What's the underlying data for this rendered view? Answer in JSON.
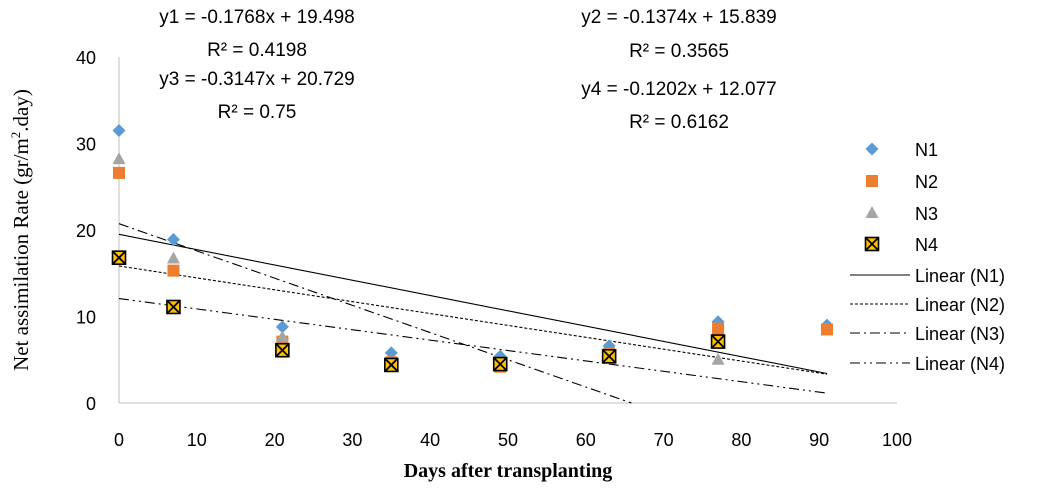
{
  "chart_data": {
    "type": "scatter",
    "title": "",
    "xlabel": "Days after transplanting",
    "ylabel_main": "Net assimilation Rate (gr/m",
    "ylabel_sup": "2",
    "ylabel_tail": ".day)",
    "xlim": [
      0,
      100
    ],
    "ylim": [
      0,
      40
    ],
    "x_ticks": [
      0,
      10,
      20,
      30,
      40,
      50,
      60,
      70,
      80,
      90,
      100
    ],
    "y_ticks": [
      0,
      10,
      20,
      30,
      40
    ],
    "grid": false,
    "legend_position": "right",
    "series": [
      {
        "name": "N1",
        "marker": "diamond",
        "color": "#5B9BD5",
        "points": [
          [
            0,
            31.5
          ],
          [
            7,
            18.9
          ],
          [
            21,
            8.8
          ],
          [
            35,
            5.8
          ],
          [
            49,
            5.4
          ],
          [
            63,
            6.6
          ],
          [
            77,
            9.4
          ],
          [
            91,
            9.0
          ]
        ]
      },
      {
        "name": "N2",
        "marker": "square",
        "color": "#ED7D31",
        "points": [
          [
            0,
            26.6
          ],
          [
            7,
            15.3
          ],
          [
            21,
            7.1
          ],
          [
            35,
            4.7
          ],
          [
            49,
            4.2
          ],
          [
            63,
            5.7
          ],
          [
            77,
            8.6
          ],
          [
            91,
            8.5
          ]
        ]
      },
      {
        "name": "N3",
        "marker": "triangle",
        "color": "#A5A5A5",
        "points": [
          [
            0,
            28.2
          ],
          [
            7,
            16.7
          ],
          [
            21,
            7.6
          ],
          [
            35,
            4.5
          ],
          [
            49,
            4.5
          ],
          [
            63,
            5.1
          ],
          [
            77,
            5.0
          ]
        ]
      },
      {
        "name": "N4",
        "marker": "boxed-x",
        "color": "#FFC000",
        "points": [
          [
            0,
            16.8
          ],
          [
            7,
            11.1
          ],
          [
            21,
            6.1
          ],
          [
            35,
            4.4
          ],
          [
            49,
            4.5
          ],
          [
            63,
            5.4
          ],
          [
            77,
            7.1
          ]
        ]
      }
    ],
    "trendlines": [
      {
        "name": "Linear (N1)",
        "slope": -0.1768,
        "intercept": 19.498,
        "x_range": [
          0,
          91
        ],
        "dash": "solid"
      },
      {
        "name": "Linear (N2)",
        "slope": -0.1374,
        "intercept": 15.839,
        "x_range": [
          0,
          91
        ],
        "dash": "dotted"
      },
      {
        "name": "Linear (N3)",
        "slope": -0.3147,
        "intercept": 20.729,
        "x_range": [
          0,
          91
        ],
        "dash": "dash-dot"
      },
      {
        "name": "Linear (N4)",
        "slope": -0.1202,
        "intercept": 12.077,
        "x_range": [
          0,
          91
        ],
        "dash": "dash-dot-dot"
      }
    ],
    "annotations": [
      {
        "text": "y1 = -0.1768x + 19.498"
      },
      {
        "text": "R² = 0.4198"
      },
      {
        "text": "y3 = -0.3147x + 20.729"
      },
      {
        "text": "R² = 0.75"
      },
      {
        "text": "y2 = -0.1374x + 15.839"
      },
      {
        "text": "R² = 0.3565"
      },
      {
        "text": "y4 = -0.1202x + 12.077"
      },
      {
        "text": "R² = 0.6162"
      }
    ]
  }
}
